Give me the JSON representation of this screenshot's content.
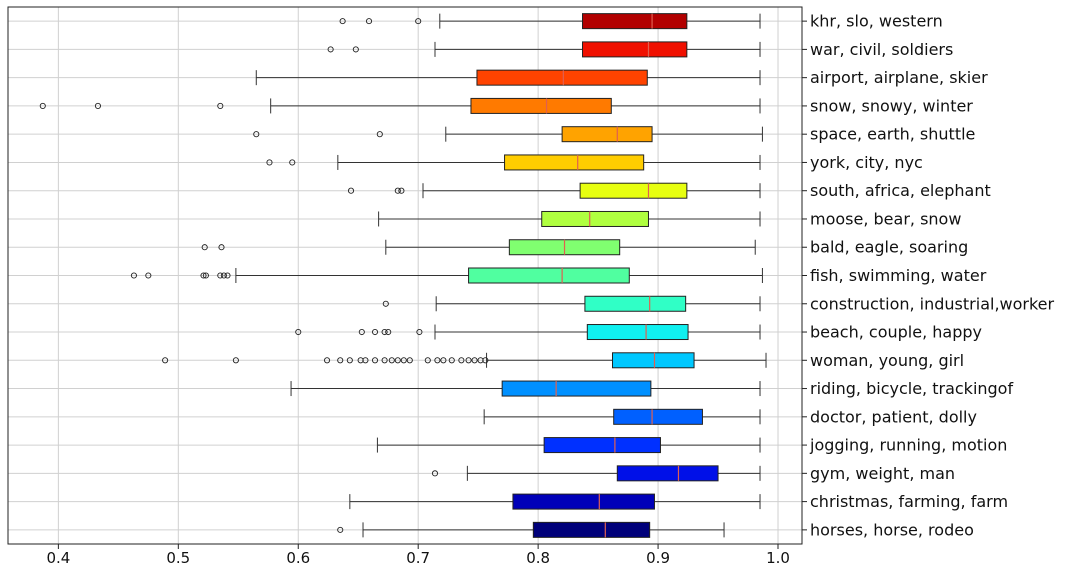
{
  "chart_data": {
    "type": "boxplot",
    "orientation": "horizontal",
    "title": "",
    "xlabel": "",
    "ylabel": "",
    "xlim": [
      0.358,
      1.02
    ],
    "x_ticks": [
      0.4,
      0.5,
      0.6,
      0.7,
      0.8,
      0.9,
      1.0
    ],
    "x_tick_labels": [
      "0.4",
      "0.5",
      "0.6",
      "0.7",
      "0.8",
      "0.9",
      "1.0"
    ],
    "grid": true,
    "median_color": "#e06050",
    "categories": [
      {
        "label": "khr, slo, western",
        "color": "#b20000",
        "whisker_low": 0.718,
        "q1": 0.837,
        "median": 0.895,
        "q3": 0.924,
        "whisker_high": 0.985,
        "outliers": [
          0.637,
          0.659,
          0.7
        ]
      },
      {
        "label": "war, civil, soldiers",
        "color": "#f01000",
        "whisker_low": 0.714,
        "q1": 0.837,
        "median": 0.892,
        "q3": 0.924,
        "whisker_high": 0.985,
        "outliers": [
          0.627,
          0.648
        ]
      },
      {
        "label": "airport, airplane, skier",
        "color": "#ff4300",
        "whisker_low": 0.565,
        "q1": 0.749,
        "median": 0.821,
        "q3": 0.891,
        "whisker_high": 0.985,
        "outliers": []
      },
      {
        "label": "snow, snowy, winter",
        "color": "#ff7a00",
        "whisker_low": 0.577,
        "q1": 0.744,
        "median": 0.807,
        "q3": 0.861,
        "whisker_high": 0.985,
        "outliers": [
          0.387,
          0.433,
          0.535
        ]
      },
      {
        "label": "space, earth, shuttle",
        "color": "#ffa300",
        "whisker_low": 0.723,
        "q1": 0.82,
        "median": 0.866,
        "q3": 0.895,
        "whisker_high": 0.987,
        "outliers": [
          0.565,
          0.668
        ]
      },
      {
        "label": "york, city, nyc",
        "color": "#ffcd00",
        "whisker_low": 0.633,
        "q1": 0.772,
        "median": 0.833,
        "q3": 0.888,
        "whisker_high": 0.985,
        "outliers": [
          0.576,
          0.595
        ]
      },
      {
        "label": "south, africa, elephant",
        "color": "#e7ff10",
        "whisker_low": 0.704,
        "q1": 0.835,
        "median": 0.892,
        "q3": 0.924,
        "whisker_high": 0.985,
        "outliers": [
          0.644,
          0.683,
          0.686
        ]
      },
      {
        "label": "moose, bear, snow",
        "color": "#b0ff40",
        "whisker_low": 0.667,
        "q1": 0.803,
        "median": 0.843,
        "q3": 0.892,
        "whisker_high": 0.985,
        "outliers": []
      },
      {
        "label": "bald, eagle, soaring",
        "color": "#80ff70",
        "whisker_low": 0.673,
        "q1": 0.776,
        "median": 0.822,
        "q3": 0.868,
        "whisker_high": 0.981,
        "outliers": [
          0.522,
          0.536
        ]
      },
      {
        "label": "fish, swimming, water",
        "color": "#50ffa0",
        "whisker_low": 0.548,
        "q1": 0.742,
        "median": 0.82,
        "q3": 0.876,
        "whisker_high": 0.987,
        "outliers": [
          0.463,
          0.475,
          0.521,
          0.523,
          0.535,
          0.538,
          0.541
        ]
      },
      {
        "label": "construction, industrial,worker",
        "color": "#30ffc6",
        "whisker_low": 0.715,
        "q1": 0.839,
        "median": 0.893,
        "q3": 0.923,
        "whisker_high": 0.985,
        "outliers": [
          0.673
        ]
      },
      {
        "label": "beach, couple, happy",
        "color": "#10f0f0",
        "whisker_low": 0.714,
        "q1": 0.841,
        "median": 0.89,
        "q3": 0.925,
        "whisker_high": 0.985,
        "outliers": [
          0.6,
          0.653,
          0.664,
          0.672,
          0.675,
          0.701
        ]
      },
      {
        "label": "woman, young, girl",
        "color": "#00c8ff",
        "whisker_low": 0.757,
        "q1": 0.862,
        "median": 0.897,
        "q3": 0.93,
        "whisker_high": 0.99,
        "outliers": [
          0.489,
          0.548,
          0.624,
          0.635,
          0.643,
          0.652,
          0.656,
          0.664,
          0.672,
          0.678,
          0.683,
          0.688,
          0.693,
          0.708,
          0.716,
          0.721,
          0.728,
          0.736,
          0.742,
          0.747,
          0.752,
          0.756
        ]
      },
      {
        "label": "riding, bicycle, trackingof",
        "color": "#0090ff",
        "whisker_low": 0.594,
        "q1": 0.77,
        "median": 0.815,
        "q3": 0.894,
        "whisker_high": 0.985,
        "outliers": []
      },
      {
        "label": "doctor, patient, dolly",
        "color": "#0060ff",
        "whisker_low": 0.755,
        "q1": 0.863,
        "median": 0.895,
        "q3": 0.937,
        "whisker_high": 0.985,
        "outliers": []
      },
      {
        "label": "jogging, running, motion",
        "color": "#0030ff",
        "whisker_low": 0.666,
        "q1": 0.805,
        "median": 0.864,
        "q3": 0.902,
        "whisker_high": 0.985,
        "outliers": []
      },
      {
        "label": "gym, weight, man",
        "color": "#0010e8",
        "whisker_low": 0.741,
        "q1": 0.866,
        "median": 0.917,
        "q3": 0.95,
        "whisker_high": 0.985,
        "outliers": [
          0.714
        ]
      },
      {
        "label": "christmas, farming, farm",
        "color": "#0000b8",
        "whisker_low": 0.643,
        "q1": 0.779,
        "median": 0.851,
        "q3": 0.897,
        "whisker_high": 0.985,
        "outliers": []
      },
      {
        "label": "horses, horse, rodeo",
        "color": "#00007a",
        "whisker_low": 0.654,
        "q1": 0.796,
        "median": 0.856,
        "q3": 0.893,
        "whisker_high": 0.955,
        "outliers": [
          0.635
        ]
      }
    ]
  }
}
